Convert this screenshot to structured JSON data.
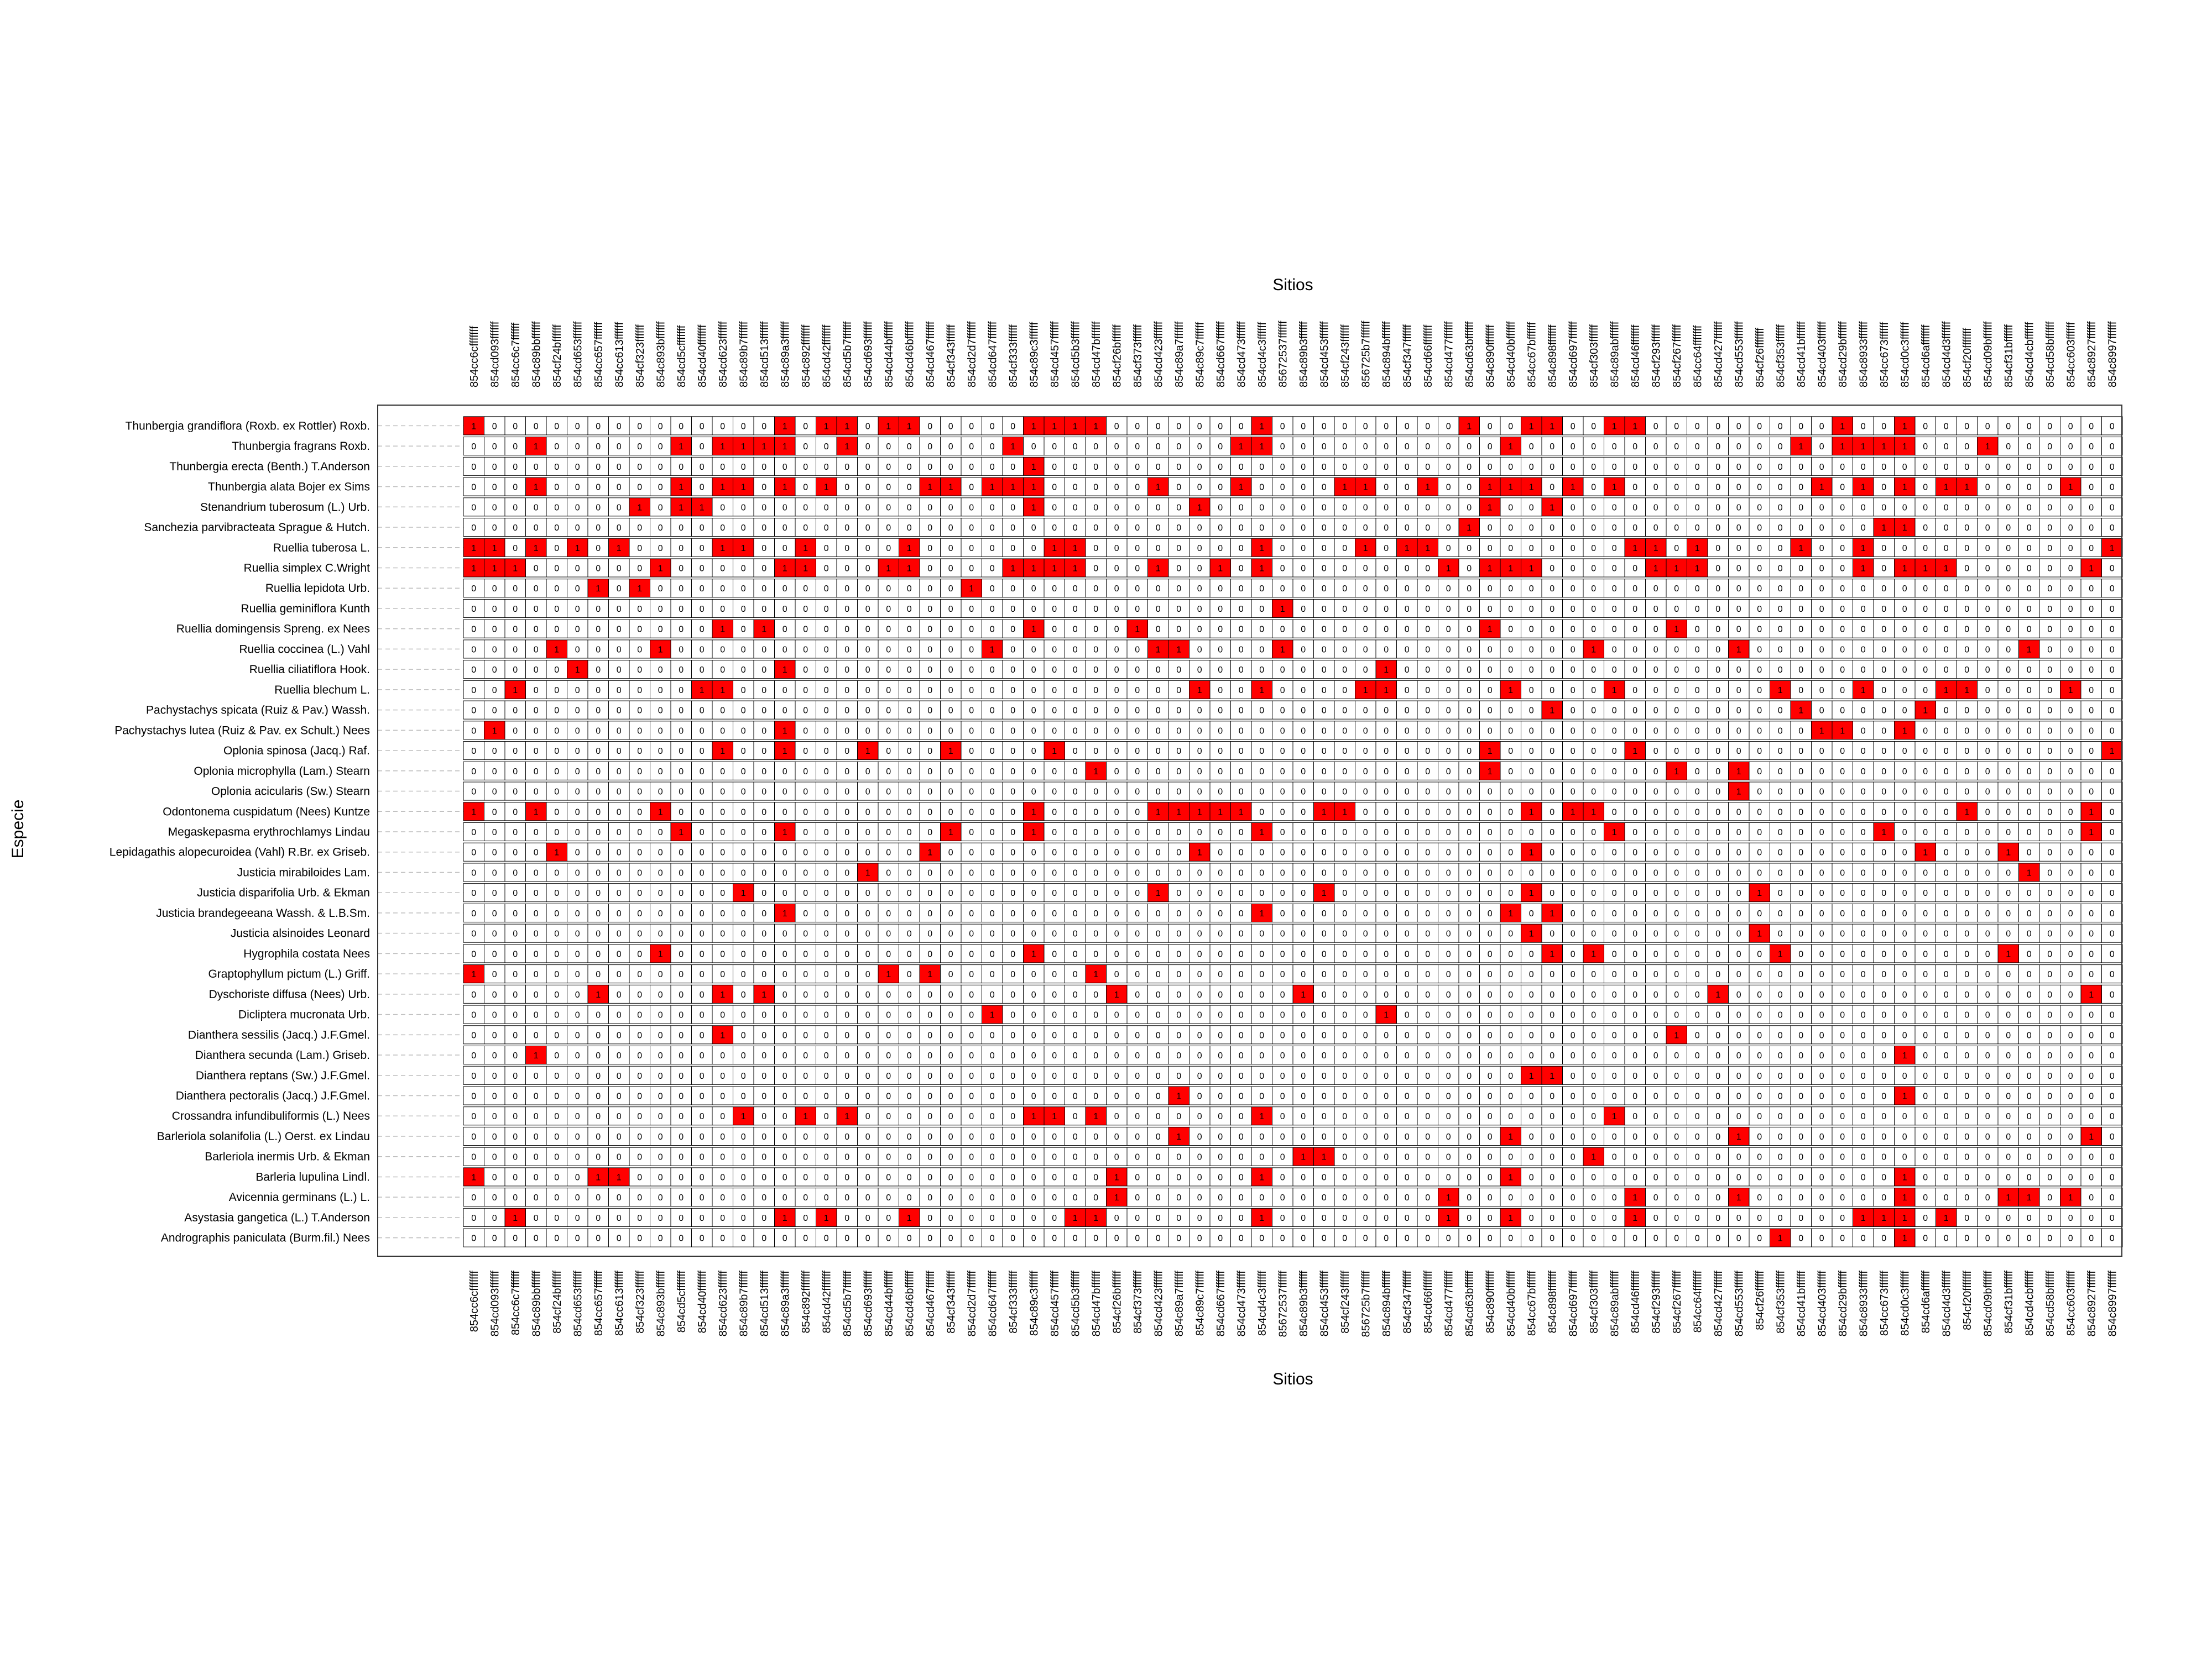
{
  "chart_data": {
    "type": "heatmap",
    "title": "",
    "xlabel": "Sitios",
    "ylabel": "Especie",
    "grid": true,
    "colors": {
      "present": "#ff0000",
      "absent": "#ffffff",
      "border": "#000000",
      "grid": "#bdbdbd"
    },
    "columns": [
      "854cc6cfffffff",
      "854cd093ffffff",
      "854cc6c7ffffff",
      "854c89bbffffff",
      "854cf24bffffff",
      "854cd653ffffff",
      "854cc657ffffff",
      "854cc613ffffff",
      "854cf323ffffff",
      "854c893bffffff",
      "854cd5cfffffff",
      "854cd40fffffff",
      "854cd623ffffff",
      "854c89b7ffffff",
      "854cd513ffffff",
      "854c89a3ffffff",
      "854c892fffffff",
      "854cd42fffffff",
      "854cd5b7ffffff",
      "854cd693ffffff",
      "854cd44bffffff",
      "854cd46bffffff",
      "854cd467ffffff",
      "854cf343ffffff",
      "854cd2d7ffffff",
      "854cd647ffffff",
      "854cf333ffffff",
      "854c89c3ffffff",
      "854cd457ffffff",
      "854cd5b3ffffff",
      "854cd47bffffff",
      "854cf26bffffff",
      "854cf373ffffff",
      "854cd423ffffff",
      "854c89a7ffffff",
      "854c89c7ffffff",
      "854cd667ffffff",
      "854cd473ffffff",
      "854cd4c3ffffff",
      "85672537ffffff",
      "854c89b3ffffff",
      "854cd453ffffff",
      "854cf243ffffff",
      "856725b7ffffff",
      "854c894bffffff",
      "854cf347ffffff",
      "854cd66fffffff",
      "854cd477ffffff",
      "854cd63bffffff",
      "854c890fffffff",
      "854cd40bffffff",
      "854cc67bffffff",
      "854c898fffffff",
      "854cd697ffffff",
      "854cf303ffffff",
      "854c89abffffff",
      "854cd46fffffff",
      "854cf293ffffff",
      "854cf267ffffff",
      "854cc64fffffff",
      "854cd427ffffff",
      "854cd553ffffff",
      "854cf26fffffff",
      "854cf353ffffff",
      "854cd41bffffff",
      "854cd403ffffff",
      "854cd29bffffff",
      "854c8933ffffff",
      "854cc673ffffff",
      "854cd0c3ffffff",
      "854cd6afffffff",
      "854cd4d3ffffff",
      "854cf20fffffff",
      "854cd09bffffff",
      "854cf31bffffff",
      "854cd4cbffffff",
      "854cd58bffffff",
      "854cc603ffffff",
      "854c8927ffffff",
      "854c8997ffffff"
    ],
    "rows": [
      "Thunbergia grandiflora (Roxb. ex Rottler) Roxb.",
      "Thunbergia fragrans Roxb.",
      "Thunbergia erecta (Benth.) T.Anderson",
      "Thunbergia alata Bojer ex Sims",
      "Stenandrium tuberosum (L.) Urb.",
      "Sanchezia parvibracteata Sprague & Hutch.",
      "Ruellia tuberosa L.",
      "Ruellia simplex C.Wright",
      "Ruellia lepidota Urb.",
      "Ruellia geminiflora Kunth",
      "Ruellia domingensis Spreng. ex Nees",
      "Ruellia coccinea (L.) Vahl",
      "Ruellia ciliatiflora Hook.",
      "Ruellia blechum L.",
      "Pachystachys spicata (Ruiz & Pav.) Wassh.",
      "Pachystachys lutea (Ruiz & Pav. ex Schult.) Nees",
      "Oplonia spinosa (Jacq.) Raf.",
      "Oplonia microphylla (Lam.) Stearn",
      "Oplonia acicularis (Sw.) Stearn",
      "Odontonema cuspidatum (Nees) Kuntze",
      "Megaskepasma erythrochlamys Lindau",
      "Lepidagathis alopecuroidea (Vahl) R.Br. ex Griseb.",
      "Justicia mirabiloides Lam.",
      "Justicia disparifolia Urb. & Ekman",
      "Justicia brandegeeana Wassh. & L.B.Sm.",
      "Justicia alsinoides Leonard",
      "Hygrophila costata Nees",
      "Graptophyllum pictum (L.) Griff.",
      "Dyschoriste diffusa (Nees) Urb.",
      "Dicliptera mucronata Urb.",
      "Dianthera sessilis (Jacq.) J.F.Gmel.",
      "Dianthera secunda (Lam.) Griseb.",
      "Dianthera reptans (Sw.) J.F.Gmel.",
      "Dianthera pectoralis (Jacq.) J.F.Gmel.",
      "Crossandra infundibuliformis (L.) Nees",
      "Barleriola solanifolia (L.) Oerst. ex Lindau",
      "Barleriola inermis Urb. & Ekman",
      "Barleria lupulina Lindl.",
      "Avicennia germinans (L.) L.",
      "Asystasia gangetica (L.) T.Anderson",
      "Andrographis paniculata (Burm.fil.) Nees"
    ],
    "present": [
      [
        0,
        15,
        17,
        18,
        20,
        21,
        27,
        28,
        29,
        30,
        38,
        48,
        51,
        52,
        55,
        56,
        66,
        69
      ],
      [
        3,
        10,
        12,
        13,
        14,
        15,
        18,
        26,
        37,
        38,
        50,
        64,
        66,
        67,
        68,
        69,
        73
      ],
      [
        27
      ],
      [
        3,
        10,
        12,
        13,
        15,
        17,
        22,
        23,
        25,
        26,
        27,
        33,
        37,
        42,
        43,
        46,
        49,
        50,
        51,
        53,
        55,
        65,
        67,
        69,
        71,
        72,
        77
      ],
      [
        8,
        10,
        11,
        27,
        35,
        49,
        52
      ],
      [
        48,
        68,
        69
      ],
      [
        0,
        1,
        3,
        5,
        7,
        12,
        13,
        16,
        21,
        28,
        29,
        38,
        43,
        45,
        46,
        56,
        57,
        59,
        64,
        67,
        79
      ],
      [
        0,
        1,
        2,
        9,
        15,
        16,
        20,
        21,
        26,
        27,
        28,
        29,
        33,
        36,
        38,
        47,
        49,
        50,
        51,
        57,
        58,
        59,
        67,
        69,
        70,
        71,
        78
      ],
      [
        6,
        8,
        24
      ],
      [
        39
      ],
      [
        12,
        14,
        27,
        32,
        49,
        58
      ],
      [
        4,
        9,
        25,
        33,
        34,
        39,
        54,
        61,
        75
      ],
      [
        5,
        15,
        44
      ],
      [
        2,
        11,
        12,
        35,
        38,
        43,
        44,
        50,
        55,
        63,
        67,
        71,
        72,
        77
      ],
      [
        52,
        64,
        70
      ],
      [
        1,
        15,
        65,
        66,
        69
      ],
      [
        12,
        15,
        19,
        23,
        28,
        49,
        56,
        79
      ],
      [
        30,
        49,
        58,
        61
      ],
      [
        61
      ],
      [
        0,
        3,
        9,
        27,
        33,
        34,
        35,
        36,
        37,
        41,
        42,
        51,
        53,
        54,
        72,
        78
      ],
      [
        10,
        15,
        23,
        27,
        38,
        55,
        68,
        78
      ],
      [
        4,
        22,
        35,
        51,
        70,
        74
      ],
      [
        19,
        75
      ],
      [
        13,
        33,
        41,
        51,
        62
      ],
      [
        15,
        38,
        50,
        52
      ],
      [
        51,
        62
      ],
      [
        9,
        27,
        52,
        54,
        63,
        74
      ],
      [
        0,
        20,
        22,
        30
      ],
      [
        6,
        12,
        14,
        31,
        40,
        60,
        78
      ],
      [
        25,
        44
      ],
      [
        12,
        58
      ],
      [
        3,
        69
      ],
      [
        51,
        52
      ],
      [
        34,
        69
      ],
      [
        13,
        16,
        18,
        27,
        28,
        30,
        38,
        55
      ],
      [
        34,
        50,
        61,
        78
      ],
      [
        40,
        41,
        54
      ],
      [
        0,
        6,
        7,
        31,
        38,
        50,
        69
      ],
      [
        31,
        47,
        56,
        61,
        69,
        74,
        75,
        77
      ],
      [
        2,
        15,
        17,
        21,
        29,
        30,
        38,
        47,
        50,
        56,
        67,
        68,
        69,
        71
      ],
      [
        63,
        69
      ]
    ]
  }
}
